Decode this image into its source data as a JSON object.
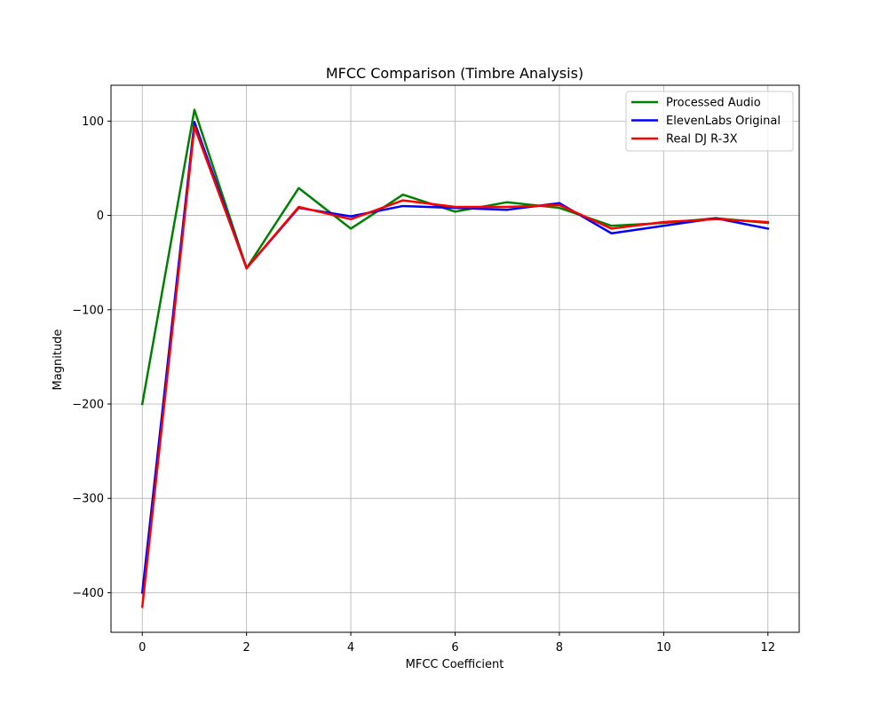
{
  "chart_data": {
    "type": "line",
    "title": "MFCC Comparison (Timbre Analysis)",
    "xlabel": "MFCC Coefficient",
    "ylabel": "Magnitude",
    "xlim": [
      -0.6,
      12.6
    ],
    "ylim": [
      -442,
      138
    ],
    "xticks": [
      0,
      2,
      4,
      6,
      8,
      10,
      12
    ],
    "yticks": [
      100,
      0,
      -100,
      -200,
      -300,
      -400
    ],
    "xtick_labels": [
      "0",
      "2",
      "4",
      "6",
      "8",
      "10",
      "12"
    ],
    "ytick_labels": [
      "100",
      "0",
      "−100",
      "−200",
      "−300",
      "−400"
    ],
    "grid": true,
    "legend_position": "top-right",
    "x": [
      0,
      1,
      2,
      3,
      4,
      5,
      6,
      7,
      8,
      9,
      10,
      11,
      12
    ],
    "series": [
      {
        "name": "Processed Audio",
        "color": "#008000",
        "values": [
          -200,
          112,
          -56,
          29,
          -14,
          22,
          4,
          14,
          8,
          -11,
          -8,
          -3,
          -8
        ]
      },
      {
        "name": "ElevenLabs Original",
        "color": "#0000ff",
        "values": [
          -400,
          99,
          -56,
          8,
          -1,
          10,
          8,
          6,
          13,
          -19,
          -11,
          -3,
          -14
        ]
      },
      {
        "name": "Real DJ R-3X",
        "color": "#ff0000",
        "values": [
          -415,
          94,
          -56,
          9,
          -4,
          16,
          9,
          9,
          11,
          -14,
          -7,
          -4,
          -7
        ]
      }
    ]
  }
}
